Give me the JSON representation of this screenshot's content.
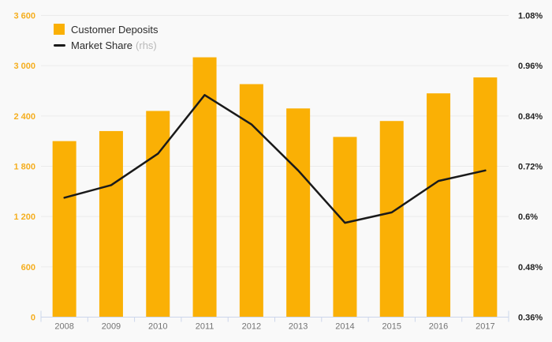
{
  "chart": {
    "background": "#F9F9F9",
    "colors": {
      "bar": "#FAB005",
      "line": "#1A1A1A",
      "left_axis_label": "#F5AE1E",
      "right_axis_label": "#242424",
      "x_axis_label": "#737373",
      "gridline": "#EBEBEB",
      "axis_line": "#CCD6EB",
      "legend_text": "#2B2B2B",
      "legend_suffix": "#B9B9B9"
    },
    "legend": {
      "series1_label": "Customer Deposits",
      "series2_label": "Market Share",
      "series2_suffix": "(rhs)"
    }
  },
  "chart_data": {
    "type": "bar+line",
    "title": "",
    "categories": [
      "2008",
      "2009",
      "2010",
      "2011",
      "2012",
      "2013",
      "2014",
      "2015",
      "2016",
      "2017"
    ],
    "series": [
      {
        "name": "Customer Deposits",
        "type": "bar",
        "axis": "left",
        "color": "#FAB005",
        "values": [
          2100,
          2220,
          2460,
          3100,
          2780,
          2490,
          2150,
          2340,
          2670,
          2860
        ]
      },
      {
        "name": "Market Share (rhs)",
        "type": "line",
        "axis": "right",
        "color": "#1A1A1A",
        "values": [
          0.645,
          0.675,
          0.75,
          0.89,
          0.82,
          0.71,
          0.585,
          0.61,
          0.685,
          0.71
        ]
      }
    ],
    "left_axis": {
      "min": 0,
      "max": 3600,
      "tick_values": [
        3600,
        3000,
        2400,
        1800,
        1200,
        600,
        0
      ],
      "labels": [
        "3 600",
        "3 000",
        "2 400",
        "1 800",
        "1 200",
        "600",
        "0"
      ]
    },
    "right_axis": {
      "min": 0.36,
      "max": 1.08,
      "tick_values": [
        1.08,
        0.96,
        0.84,
        0.72,
        0.6,
        0.48,
        0.36
      ],
      "labels": [
        "1.08%",
        "0.96%",
        "0.84%",
        "0.72%",
        "0.6%",
        "0.48%",
        "0.36%"
      ]
    },
    "grid": true,
    "legend_position": "top-left"
  }
}
